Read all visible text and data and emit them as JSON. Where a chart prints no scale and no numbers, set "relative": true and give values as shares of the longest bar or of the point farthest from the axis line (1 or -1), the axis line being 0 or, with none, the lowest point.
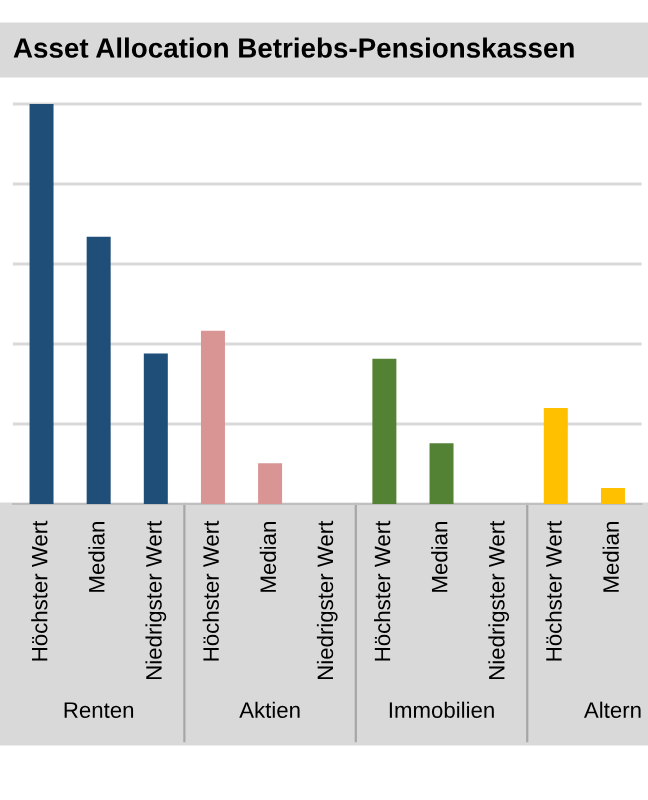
{
  "chart_data": {
    "type": "bar",
    "title": "Asset Allocation Betriebs-Pensionskassen",
    "categories": [
      "Höchster Wert",
      "Median",
      "Niedrigster Wert",
      "Höchster Wert",
      "Median",
      "Niedrigster Wert",
      "Höchster Wert",
      "Median",
      "Niedrigster Wert",
      "Höchster Wert",
      "Median"
    ],
    "values": [
      1,
      0.668,
      0.376,
      0.433,
      0.102,
      0,
      0.363,
      0.152,
      0,
      0.24,
      0.04
    ],
    "colors": [
      "#1f4e79",
      "#1f4e79",
      "#1f4e79",
      "#d99594",
      "#d99594",
      "#d99594",
      "#548235",
      "#548235",
      "#548235",
      "#ffc000",
      "#ffc000"
    ],
    "relative": true,
    "grid": "y",
    "annotations": [
      "Renten",
      "Aktien",
      "Immobilien",
      "Altern"
    ]
  }
}
